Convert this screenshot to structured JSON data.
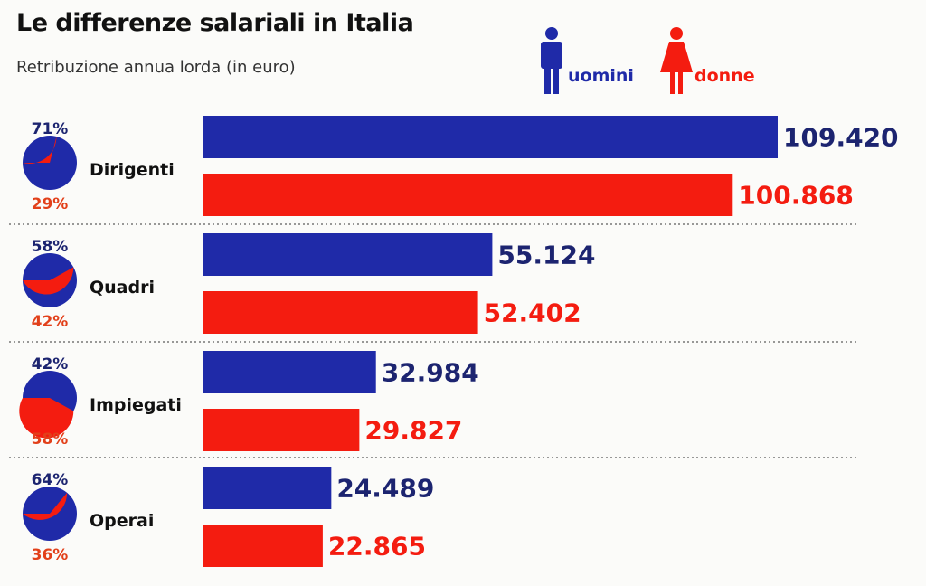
{
  "chart_data": {
    "type": "bar",
    "title": "Le differenze salariali in Italia",
    "subtitle": "Retribuzione annua lorda (in euro)",
    "categories": [
      "Dirigenti",
      "Quadri",
      "Impiegati",
      "Operai"
    ],
    "series": [
      {
        "name": "uomini",
        "color": "#1f2aa8",
        "values": [
          109420,
          55124,
          32984,
          24489
        ],
        "labels": [
          "109.420",
          "55.124",
          "32.984",
          "24.489"
        ]
      },
      {
        "name": "donne",
        "color": "#f41c10",
        "values": [
          100868,
          52402,
          29827,
          22865
        ],
        "labels": [
          "100.868",
          "52.402",
          "29.827",
          "22.865"
        ]
      }
    ],
    "share_pies": [
      {
        "category": "Dirigenti",
        "uomini": 71,
        "donne": 29,
        "uomini_label": "71%",
        "donne_label": "29%"
      },
      {
        "category": "Quadri",
        "uomini": 58,
        "donne": 42,
        "uomini_label": "58%",
        "donne_label": "42%"
      },
      {
        "category": "Impiegati",
        "uomini": 42,
        "donne": 58,
        "uomini_label": "42%",
        "donne_label": "58%"
      },
      {
        "category": "Operai",
        "uomini": 64,
        "donne": 36,
        "uomini_label": "64%",
        "donne_label": "36%"
      }
    ],
    "legend": {
      "placement": "top-right",
      "items": [
        "uomini",
        "donne"
      ],
      "icons": [
        "man-icon",
        "woman-icon"
      ]
    },
    "grid": false
  }
}
